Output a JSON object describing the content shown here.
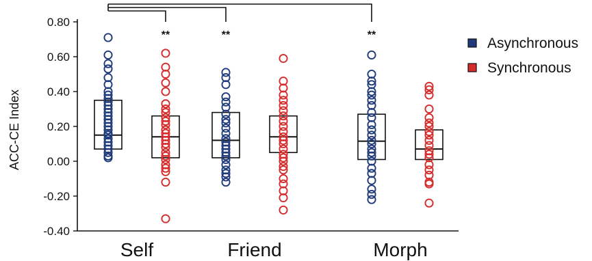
{
  "chart_data": {
    "type": "scatter",
    "subtype": "dot-plot with box overlays",
    "ylabel": "ACC-CE Index",
    "ylim": [
      -0.4,
      0.8
    ],
    "yticks": [
      -0.4,
      -0.2,
      0.0,
      0.2,
      0.4,
      0.6,
      0.8
    ],
    "ytick_labels": [
      "-0.40",
      "-0.20",
      "0.00",
      "0.20",
      "0.40",
      "0.60",
      "0.80"
    ],
    "categories": [
      "Self",
      "Friend",
      "Morph"
    ],
    "legend_position": "top-right",
    "series": [
      {
        "name": "Asynchronous",
        "color": "#1f3a7a",
        "boxes": [
          {
            "q1": 0.07,
            "median": 0.15,
            "q3": 0.35
          },
          {
            "q1": 0.02,
            "median": 0.12,
            "q3": 0.28
          },
          {
            "q1": 0.01,
            "median": 0.115,
            "q3": 0.27
          }
        ],
        "points": [
          [
            0.71,
            0.61,
            0.56,
            0.53,
            0.48,
            0.44,
            0.4,
            0.38,
            0.36,
            0.34,
            0.32,
            0.3,
            0.28,
            0.26,
            0.24,
            0.22,
            0.2,
            0.18,
            0.16,
            0.15,
            0.13,
            0.11,
            0.09,
            0.07,
            0.05,
            0.03,
            0.02
          ],
          [
            0.51,
            0.48,
            0.44,
            0.37,
            0.34,
            0.31,
            0.27,
            0.24,
            0.22,
            0.19,
            0.16,
            0.13,
            0.11,
            0.09,
            0.07,
            0.05,
            0.03,
            0.01,
            -0.02,
            -0.05,
            -0.07,
            -0.09,
            -0.12
          ],
          [
            0.61,
            0.5,
            0.46,
            0.44,
            0.4,
            0.38,
            0.35,
            0.32,
            0.28,
            0.25,
            0.21,
            0.18,
            0.15,
            0.12,
            0.1,
            0.07,
            0.05,
            0.03,
            0.0,
            -0.04,
            -0.07,
            -0.11,
            -0.16,
            -0.19,
            -0.22
          ]
        ]
      },
      {
        "name": "Synchronous",
        "color": "#d62b2b",
        "boxes": [
          {
            "q1": 0.02,
            "median": 0.14,
            "q3": 0.26
          },
          {
            "q1": 0.05,
            "median": 0.14,
            "q3": 0.26
          },
          {
            "q1": 0.01,
            "median": 0.07,
            "q3": 0.18
          }
        ],
        "points": [
          [
            0.62,
            0.54,
            0.5,
            0.45,
            0.4,
            0.33,
            0.3,
            0.28,
            0.25,
            0.23,
            0.21,
            0.18,
            0.16,
            0.14,
            0.12,
            0.1,
            0.08,
            0.05,
            0.03,
            0.01,
            -0.02,
            -0.04,
            -0.06,
            -0.12,
            -0.33
          ],
          [
            0.59,
            0.46,
            0.42,
            0.38,
            0.35,
            0.32,
            0.29,
            0.26,
            0.23,
            0.2,
            0.17,
            0.14,
            0.12,
            0.1,
            0.07,
            0.04,
            0.02,
            0.0,
            -0.03,
            -0.05,
            -0.1,
            -0.13,
            -0.17,
            -0.21,
            -0.28
          ],
          [
            0.43,
            0.41,
            0.38,
            0.3,
            0.25,
            0.22,
            0.2,
            0.17,
            0.15,
            0.12,
            0.09,
            0.06,
            0.04,
            0.02,
            -0.02,
            -0.05,
            -0.08,
            -0.12,
            -0.13,
            -0.24
          ]
        ]
      }
    ],
    "significance": [
      {
        "category": "Self",
        "series": "Synchronous",
        "label": "**"
      },
      {
        "category": "Friend",
        "series": "Asynchronous",
        "label": "**"
      },
      {
        "category": "Morph",
        "series": "Asynchronous",
        "label": "**"
      }
    ]
  }
}
